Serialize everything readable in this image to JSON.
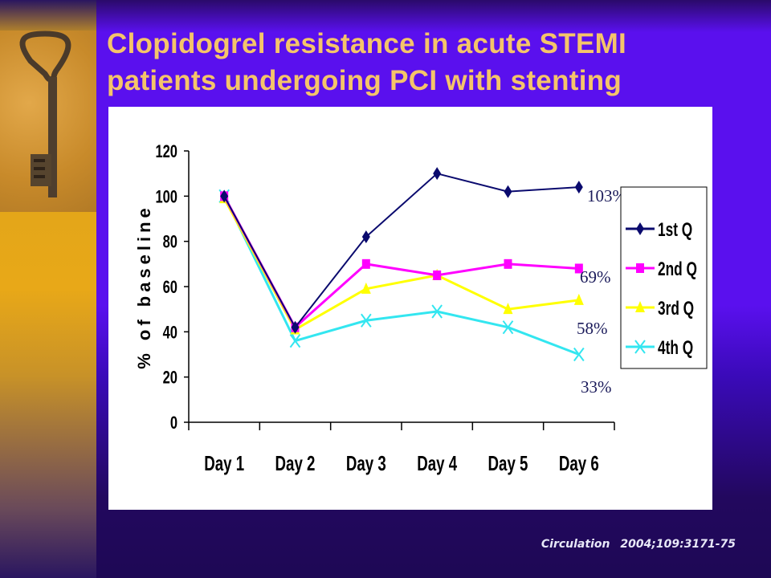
{
  "slide": {
    "title_line1": "Clopidogrel resistance in acute STEMI",
    "title_line2": "patients undergoing PCI with stenting",
    "citation_journal": "Circulation",
    "citation_ref": "2004;109:3171-75",
    "sidebar_image": "antique-key-photo"
  },
  "colors": {
    "title": "#f5c46a",
    "background": "#5a10ee",
    "sidebar": "#e8a818"
  },
  "chart_data": {
    "type": "line",
    "title": "",
    "xlabel": "",
    "ylabel": "% of baseline",
    "categories": [
      "Day 1",
      "Day 2",
      "Day 3",
      "Day 4",
      "Day 5",
      "Day 6"
    ],
    "ylim": [
      0,
      120
    ],
    "yticks": [
      0,
      20,
      40,
      60,
      80,
      100,
      120
    ],
    "grid": false,
    "legend_position": "right",
    "series": [
      {
        "name": "1st Q",
        "color": "#0a0a6e",
        "marker": "diamond",
        "values": [
          100,
          42,
          82,
          110,
          102,
          104
        ]
      },
      {
        "name": "2nd Q",
        "color": "#ff00ff",
        "marker": "square",
        "values": [
          100,
          42,
          70,
          65,
          70,
          68
        ]
      },
      {
        "name": "3rd Q",
        "color": "#ffff00",
        "marker": "triangle",
        "values": [
          99,
          41,
          59,
          65,
          50,
          54
        ]
      },
      {
        "name": "4th Q",
        "color": "#33e6f0",
        "marker": "x",
        "values": [
          100,
          36,
          45,
          49,
          42,
          30
        ]
      }
    ],
    "annotations": [
      {
        "text": "103%",
        "series": "1st Q"
      },
      {
        "text": "69%",
        "series": "2nd Q"
      },
      {
        "text": "58%",
        "series": "3rd Q"
      },
      {
        "text": "33%",
        "series": "4th Q"
      }
    ]
  }
}
